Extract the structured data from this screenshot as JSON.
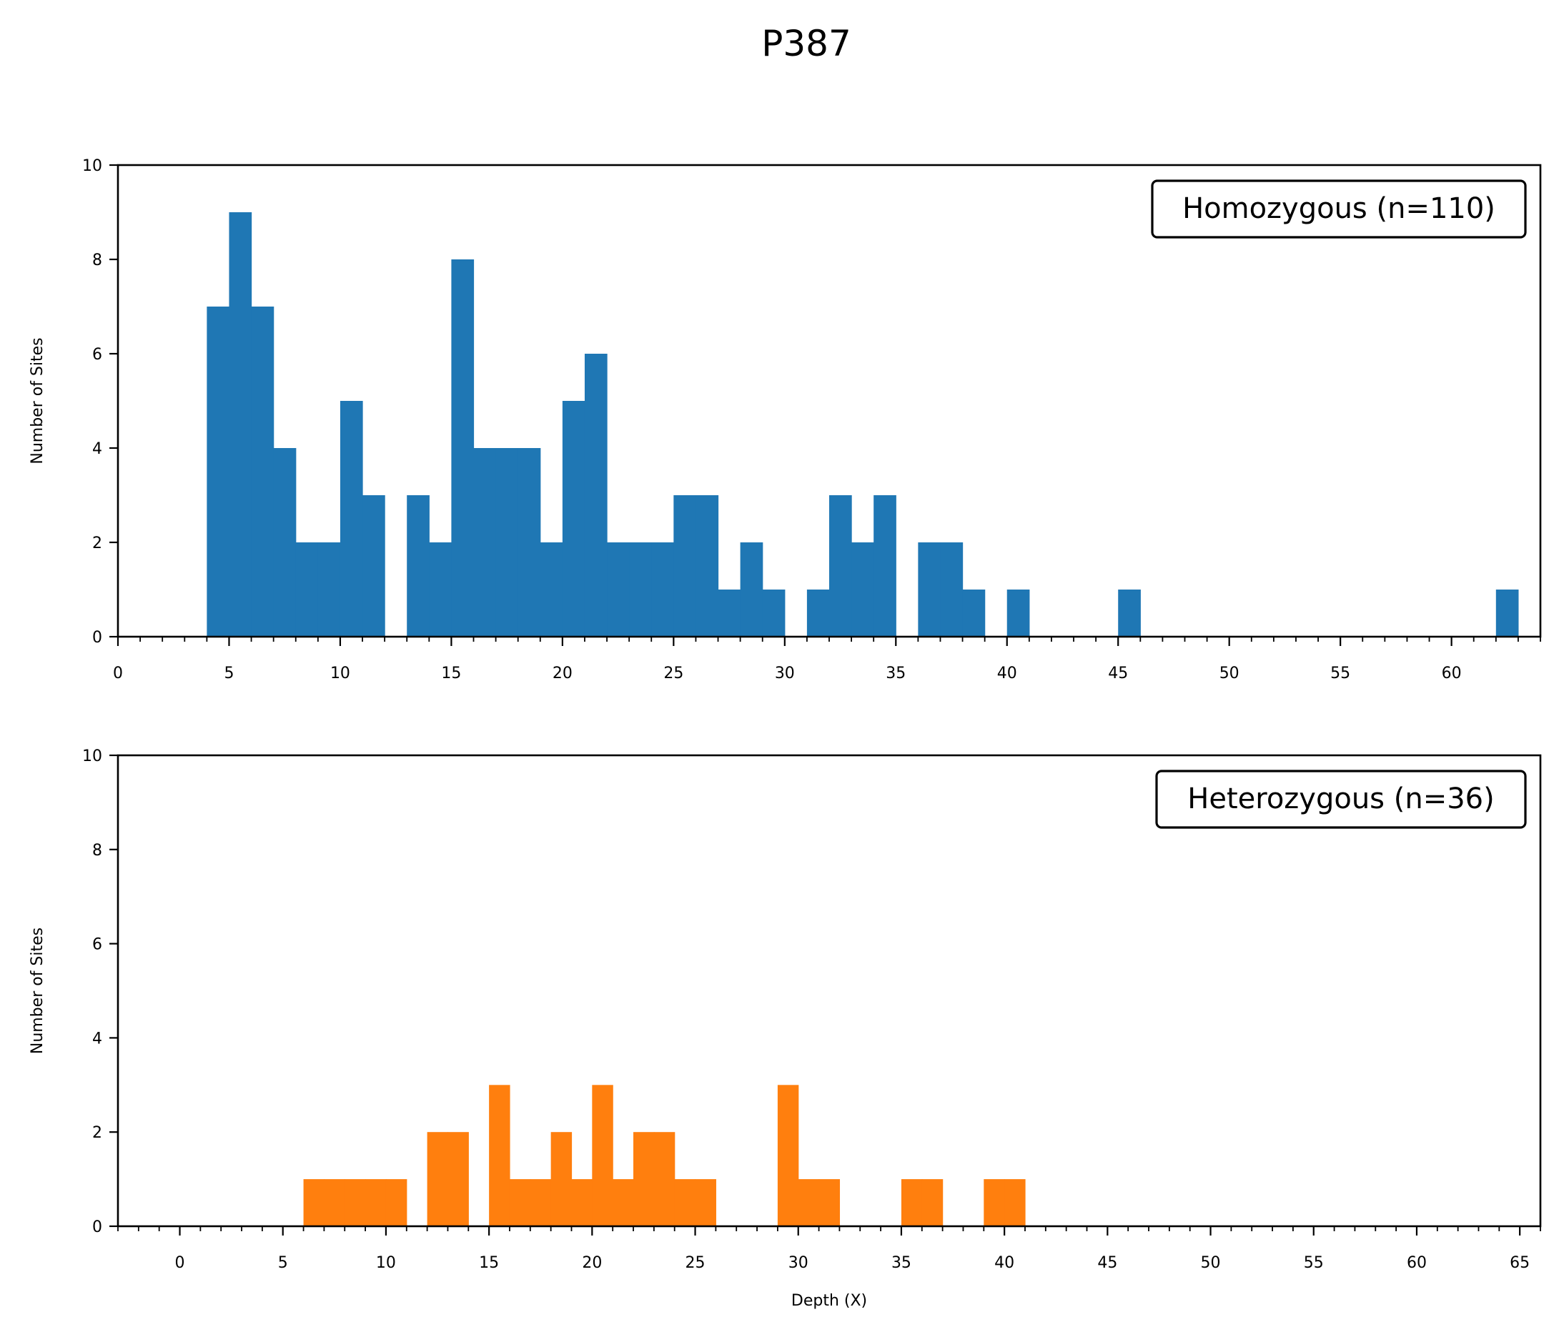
{
  "title": "P387",
  "chart_data": [
    {
      "type": "bar",
      "bin_width": 1,
      "xlim": [
        0,
        64
      ],
      "ylim": [
        0,
        10
      ],
      "xticks": [
        0,
        5,
        10,
        15,
        20,
        25,
        30,
        35,
        40,
        45,
        50,
        55,
        60
      ],
      "yticks": [
        0,
        2,
        4,
        6,
        8,
        10
      ],
      "ylabel": "Number of Sites",
      "xlabel": "",
      "legend": "Homozygous (n=110)",
      "legend_position": "top-right",
      "color": "#1f77b4",
      "bins": [
        [
          4,
          7
        ],
        [
          5,
          9
        ],
        [
          6,
          7
        ],
        [
          7,
          4
        ],
        [
          8,
          2
        ],
        [
          9,
          2
        ],
        [
          10,
          5
        ],
        [
          11,
          3
        ],
        [
          13,
          3
        ],
        [
          14,
          2
        ],
        [
          15,
          8
        ],
        [
          16,
          4
        ],
        [
          17,
          4
        ],
        [
          18,
          4
        ],
        [
          19,
          2
        ],
        [
          20,
          5
        ],
        [
          21,
          6
        ],
        [
          22,
          2
        ],
        [
          23,
          2
        ],
        [
          24,
          2
        ],
        [
          25,
          3
        ],
        [
          26,
          3
        ],
        [
          27,
          1
        ],
        [
          28,
          2
        ],
        [
          29,
          1
        ],
        [
          31,
          1
        ],
        [
          32,
          3
        ],
        [
          33,
          2
        ],
        [
          34,
          3
        ],
        [
          36,
          2
        ],
        [
          37,
          2
        ],
        [
          38,
          1
        ],
        [
          40,
          1
        ],
        [
          45,
          1
        ],
        [
          62,
          1
        ]
      ]
    },
    {
      "type": "bar",
      "bin_width": 1,
      "xlim": [
        -3,
        66
      ],
      "ylim": [
        0,
        10
      ],
      "xticks": [
        0,
        5,
        10,
        15,
        20,
        25,
        30,
        35,
        40,
        45,
        50,
        55,
        60,
        65
      ],
      "yticks": [
        0,
        2,
        4,
        6,
        8,
        10
      ],
      "ylabel": "Number of Sites",
      "xlabel": "Depth (X)",
      "legend": "Heterozygous (n=36)",
      "legend_position": "top-right",
      "color": "#ff7f0e",
      "bins": [
        [
          6,
          1
        ],
        [
          7,
          1
        ],
        [
          8,
          1
        ],
        [
          9,
          1
        ],
        [
          10,
          1
        ],
        [
          12,
          2
        ],
        [
          13,
          2
        ],
        [
          15,
          3
        ],
        [
          16,
          1
        ],
        [
          17,
          1
        ],
        [
          18,
          2
        ],
        [
          19,
          1
        ],
        [
          20,
          3
        ],
        [
          21,
          1
        ],
        [
          22,
          2
        ],
        [
          23,
          2
        ],
        [
          24,
          1
        ],
        [
          25,
          1
        ],
        [
          29,
          3
        ],
        [
          30,
          1
        ],
        [
          31,
          1
        ],
        [
          35,
          1
        ],
        [
          36,
          1
        ],
        [
          39,
          1
        ],
        [
          40,
          1
        ]
      ]
    }
  ]
}
